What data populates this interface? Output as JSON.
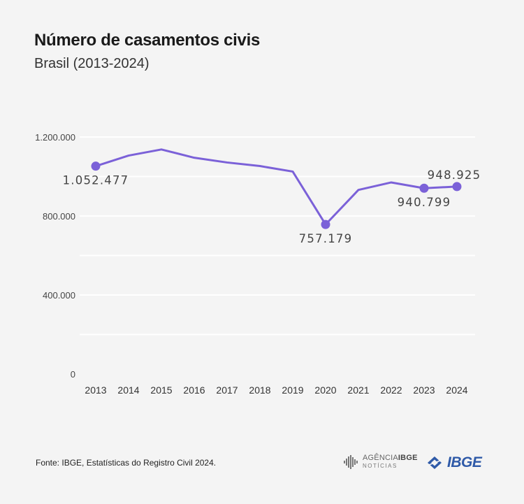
{
  "chart_data": {
    "type": "line",
    "title": "Número de casamentos civis",
    "subtitle": "Brasil (2013-2024)",
    "xlabel": "",
    "ylabel": "",
    "ylim": [
      0,
      1200000
    ],
    "grid": true,
    "y_ticks": [
      {
        "value": 0,
        "label": "0"
      },
      {
        "value": 400000,
        "label": "400.000"
      },
      {
        "value": 800000,
        "label": "800.000"
      },
      {
        "value": 1200000,
        "label": "1.200.000"
      }
    ],
    "minor_gridlines": [
      200000,
      600000,
      1000000
    ],
    "categories": [
      "2013",
      "2014",
      "2015",
      "2016",
      "2017",
      "2018",
      "2019",
      "2020",
      "2021",
      "2022",
      "2023",
      "2024"
    ],
    "series": [
      {
        "name": "Número de casamentos civis",
        "color": "#7b61d8",
        "values": [
          1052477,
          1106000,
          1137000,
          1095000,
          1071000,
          1053000,
          1025000,
          757179,
          932000,
          970000,
          940799,
          948925
        ]
      }
    ],
    "annotations": [
      {
        "category": "2013",
        "value": 1052477,
        "label": "1.052.477",
        "position": "below"
      },
      {
        "category": "2020",
        "value": 757179,
        "label": "757.179",
        "position": "below"
      },
      {
        "category": "2023",
        "value": 940799,
        "label": "940.799",
        "position": "below"
      },
      {
        "category": "2024",
        "value": 948925,
        "label": "948.925",
        "position": "above"
      }
    ]
  },
  "footer": {
    "source": "Fonte: IBGE, Estatísticas do Registro Civil 2024.",
    "agencia_line1": "AGÊNCIA",
    "agencia_line1_bold": "IBGE",
    "agencia_line2": "NOTÍCIAS",
    "ibge_logo_text": "IBGE"
  },
  "colors": {
    "background": "#f4f4f4",
    "line": "#7b61d8",
    "grid": "#ffffff",
    "brand_blue": "#2f5aa8"
  }
}
